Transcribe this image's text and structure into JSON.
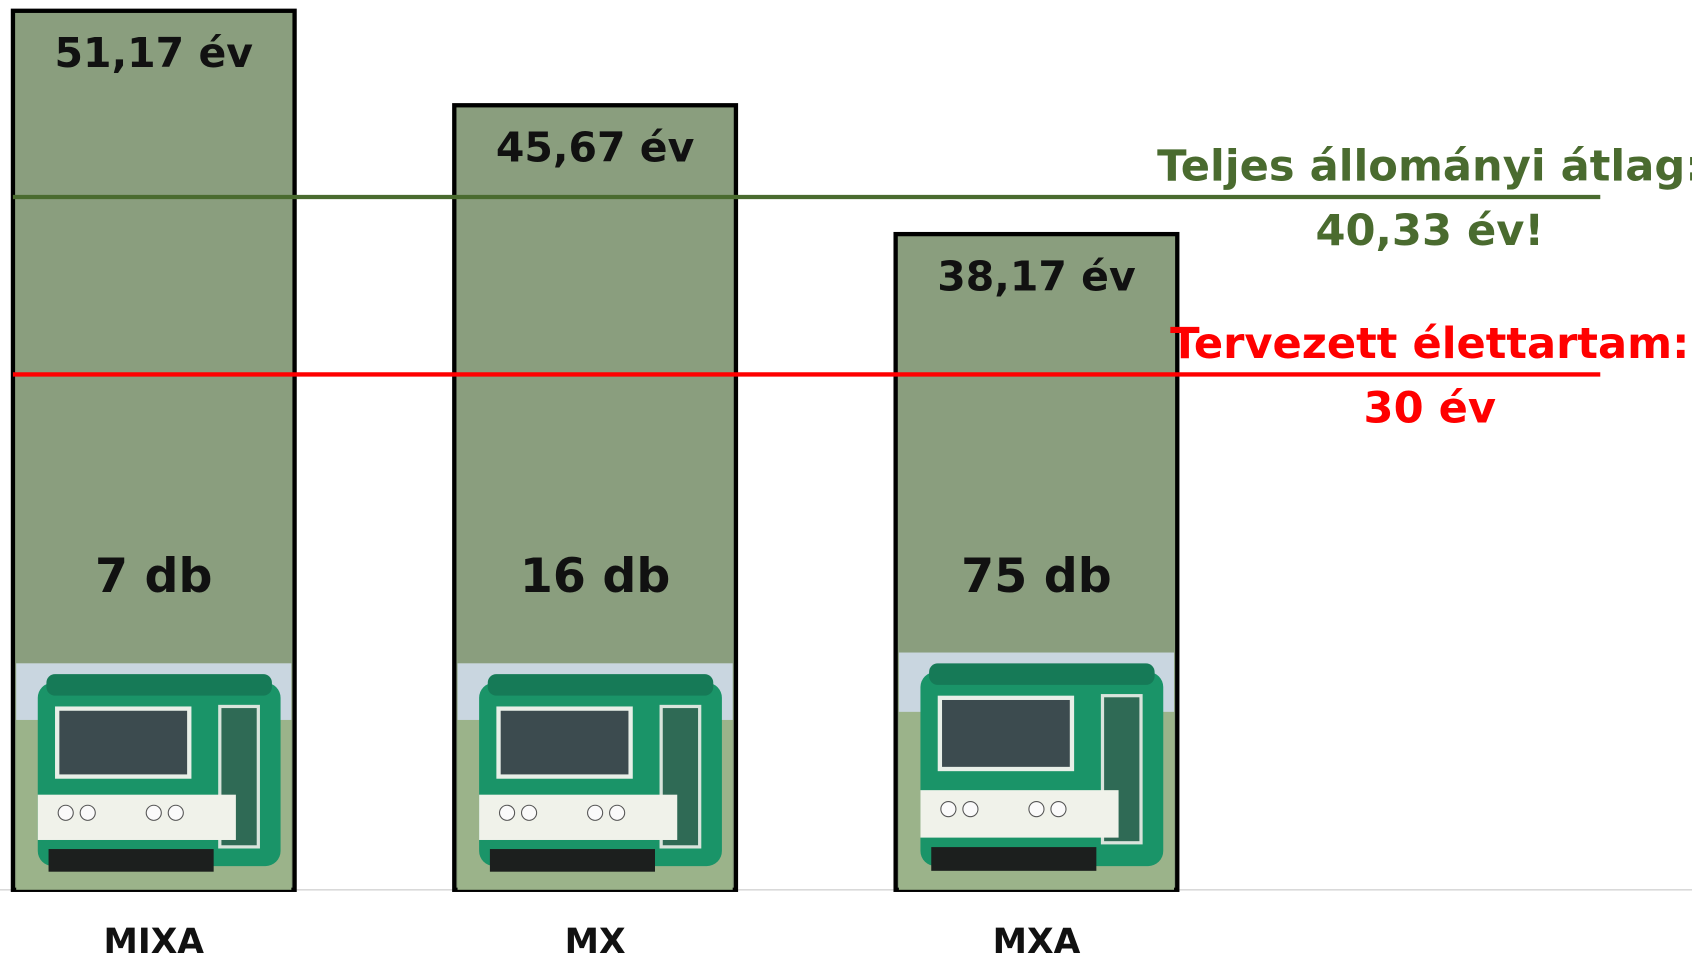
{
  "chart_data": {
    "type": "bar",
    "categories": [
      "MIXA",
      "MX",
      "MXA"
    ],
    "values": [
      51.17,
      45.67,
      38.17
    ],
    "value_labels": [
      "51,17 év",
      "45,67 év",
      "38,17 év"
    ],
    "count_labels": [
      "7 db",
      "16 db",
      "75 db"
    ],
    "color": "#8a9e7e",
    "ylim": [
      0,
      51.17
    ],
    "reference_lines": [
      {
        "value": 40.33,
        "label": "Teljes állományi átlag:",
        "value_label": "40,33 év!",
        "color": "#4a6b2f"
      },
      {
        "value": 30,
        "label": "Tervezett élettartam:",
        "value_label": "30 év",
        "color": "#ff0000"
      }
    ]
  }
}
